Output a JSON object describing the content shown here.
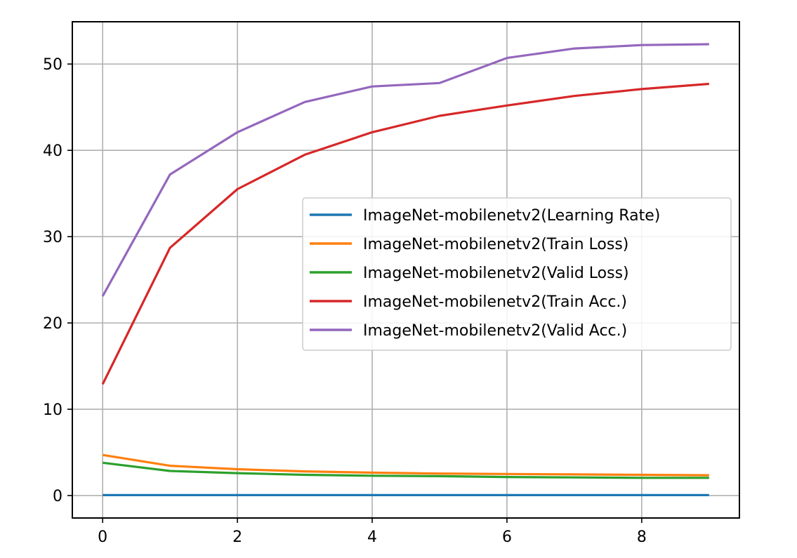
{
  "chart_data": {
    "type": "line",
    "title": "",
    "xlabel": "",
    "ylabel": "",
    "x": [
      0,
      1,
      2,
      3,
      4,
      5,
      6,
      7,
      8,
      9
    ],
    "xlim": [
      -0.45,
      9.45
    ],
    "ylim": [
      -2.6,
      54.9
    ],
    "x_ticks": [
      0,
      2,
      4,
      6,
      8
    ],
    "y_ticks": [
      0,
      10,
      20,
      30,
      40,
      50
    ],
    "grid": true,
    "legend_position": "center-right",
    "series": [
      {
        "name": "ImageNet-mobilenetv2(Learning Rate)",
        "color": "#1f77b4",
        "values": [
          0.05,
          0.05,
          0.05,
          0.05,
          0.05,
          0.05,
          0.05,
          0.05,
          0.05,
          0.05
        ]
      },
      {
        "name": "ImageNet-mobilenetv2(Train Loss)",
        "color": "#ff7f0e",
        "values": [
          4.7,
          3.45,
          3.05,
          2.8,
          2.65,
          2.55,
          2.5,
          2.45,
          2.4,
          2.35
        ]
      },
      {
        "name": "ImageNet-mobilenetv2(Valid Loss)",
        "color": "#2ca02c",
        "values": [
          3.8,
          2.85,
          2.6,
          2.4,
          2.3,
          2.25,
          2.15,
          2.1,
          2.05,
          2.05
        ]
      },
      {
        "name": "ImageNet-mobilenetv2(Train Acc.)",
        "color": "#d62728",
        "values": [
          12.9,
          28.7,
          35.5,
          39.5,
          42.1,
          44.0,
          45.2,
          46.3,
          47.1,
          47.7
        ]
      },
      {
        "name": "ImageNet-mobilenetv2(Valid Acc.)",
        "color": "#9467bd",
        "values": [
          23.1,
          37.2,
          42.1,
          45.6,
          47.4,
          47.8,
          50.7,
          51.8,
          52.2,
          52.3
        ]
      }
    ]
  }
}
